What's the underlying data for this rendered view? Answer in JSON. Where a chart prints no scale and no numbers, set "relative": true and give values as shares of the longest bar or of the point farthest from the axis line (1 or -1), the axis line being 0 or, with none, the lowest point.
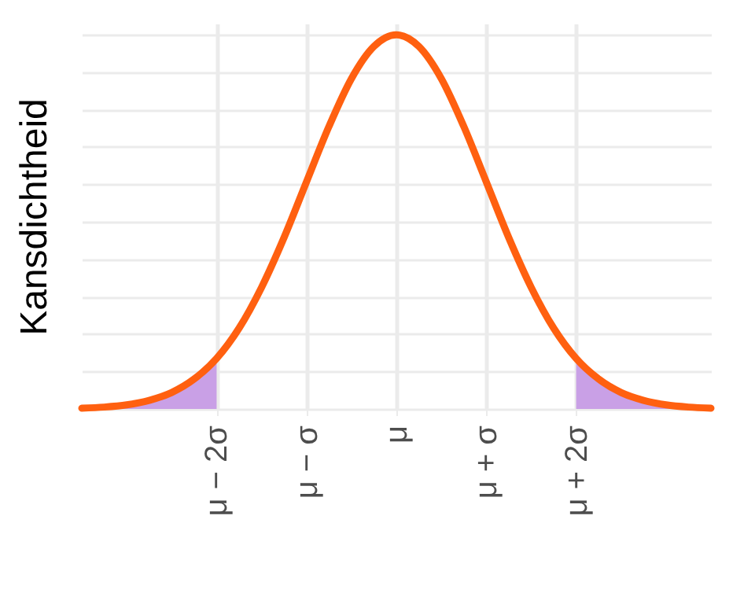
{
  "chart_data": {
    "type": "line",
    "ylabel": "Kansdichtheid",
    "relative": true,
    "grid": true,
    "xlim": [
      -3.5,
      3.5
    ],
    "xticks": [
      {
        "value": -2,
        "label": "μ − 2σ"
      },
      {
        "value": -1,
        "label": "μ − σ"
      },
      {
        "value": 0,
        "label": "μ"
      },
      {
        "value": 1,
        "label": "μ + σ"
      },
      {
        "value": 2,
        "label": "μ + 2σ"
      }
    ],
    "series": [
      {
        "type": "area",
        "color": "#c9a0e6",
        "x": [
          -3.5,
          -3.25,
          -3,
          -2.75,
          -2.5,
          -2.25,
          -2
        ],
        "values": [
          0.002,
          0.005,
          0.011,
          0.023,
          0.044,
          0.08,
          0.135
        ]
      },
      {
        "type": "area",
        "color": "#c9a0e6",
        "x": [
          2,
          2.25,
          2.5,
          2.75,
          3,
          3.25,
          3.5
        ],
        "values": [
          0.135,
          0.08,
          0.044,
          0.023,
          0.011,
          0.005,
          0.002
        ]
      },
      {
        "color": "#ff6010",
        "x": [
          -3.5,
          -3.25,
          -3,
          -2.75,
          -2.5,
          -2.25,
          -2,
          -1.75,
          -1.5,
          -1.25,
          -1,
          -0.75,
          -0.5,
          -0.25,
          0,
          0.25,
          0.5,
          0.75,
          1,
          1.25,
          1.5,
          1.75,
          2,
          2.25,
          2.5,
          2.75,
          3,
          3.25,
          3.5
        ],
        "values": [
          0.002,
          0.005,
          0.011,
          0.023,
          0.044,
          0.08,
          0.135,
          0.216,
          0.325,
          0.458,
          0.607,
          0.755,
          0.883,
          0.969,
          1,
          0.969,
          0.883,
          0.755,
          0.607,
          0.458,
          0.325,
          0.216,
          0.135,
          0.08,
          0.044,
          0.023,
          0.011,
          0.005,
          0.002
        ]
      }
    ]
  }
}
